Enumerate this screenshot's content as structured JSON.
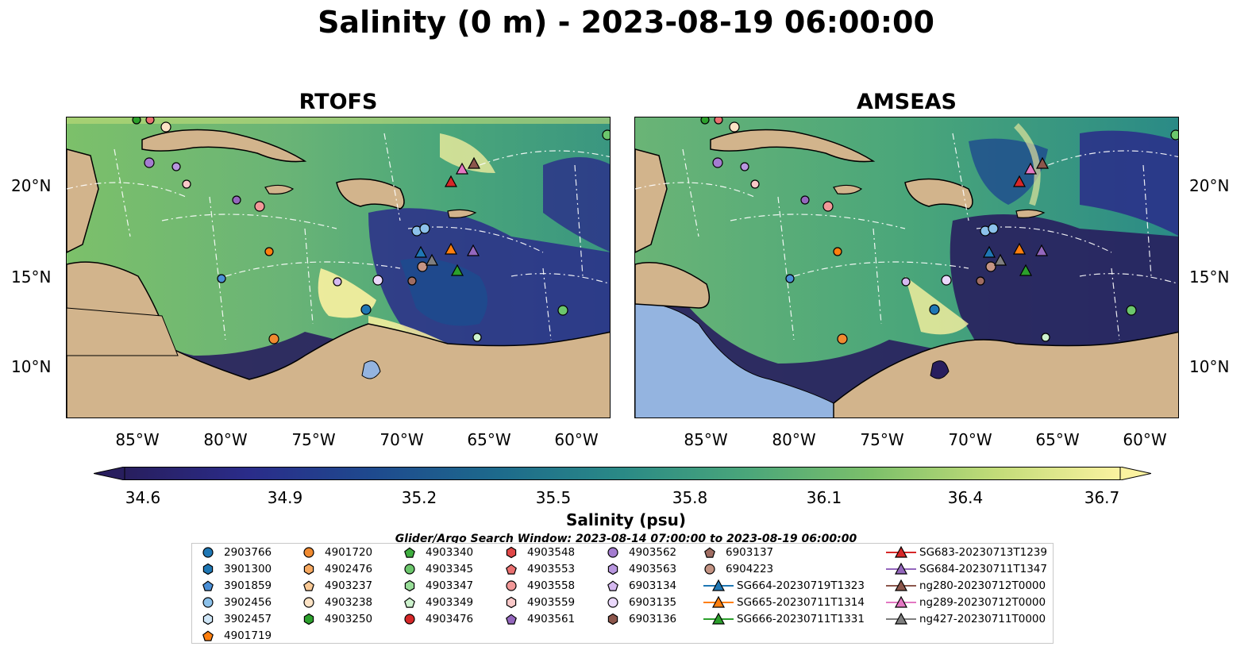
{
  "figure": {
    "title": "Salinity (0 m) - 2023-08-19 06:00:00",
    "panels": [
      {
        "title": "RTOFS"
      },
      {
        "title": "AMSEAS"
      }
    ],
    "lat_ticks": [
      "20°N",
      "15°N",
      "10°N"
    ],
    "lon_ticks": [
      "85°W",
      "80°W",
      "75°W",
      "70°W",
      "65°W",
      "60°W"
    ],
    "colorbar": {
      "label": "Salinity (psu)",
      "ticks": [
        "34.6",
        "34.9",
        "35.2",
        "35.5",
        "35.8",
        "36.1",
        "36.4",
        "36.7"
      ],
      "min": 34.6,
      "max": 36.7,
      "colormap": [
        "#281e5e",
        "#2a2c8a",
        "#1e4a8e",
        "#1d6a8c",
        "#2a8a86",
        "#4aa67a",
        "#7cc06a",
        "#c2dc78",
        "#fbf2a0"
      ]
    },
    "search_window": "Glider/Argo Search Window: 2023-08-14 07:00:00 to 2023-08-19 06:00:00",
    "land_color": "#d2b48c",
    "colors": {
      "tab_blue": "#1f77b4",
      "tab_orange": "#ff7f0e",
      "tab_green": "#2ca02c",
      "tab_red": "#d62728",
      "tab_purple": "#9467bd",
      "tab_brown": "#8c564b",
      "tab_pink": "#e377c2",
      "tab_gray": "#7f7f7f"
    }
  },
  "legend": {
    "columns": [
      [
        {
          "label": "2903766",
          "marker": "circle",
          "color": "#1f77b4"
        },
        {
          "label": "3901300",
          "marker": "hexagon",
          "color": "#1f77b4"
        },
        {
          "label": "3901859",
          "marker": "pentagon",
          "color": "#4a8fd6"
        },
        {
          "label": "3902456",
          "marker": "circle",
          "color": "#8cc1ea"
        },
        {
          "label": "3902457",
          "marker": "hexagon",
          "color": "#cfe6f7"
        },
        {
          "label": "4901719",
          "marker": "pentagon",
          "color": "#ff7f0e"
        }
      ],
      [
        {
          "label": "4901720",
          "marker": "circle",
          "color": "#f08a30"
        },
        {
          "label": "4902476",
          "marker": "hexagon",
          "color": "#f6a860"
        },
        {
          "label": "4903237",
          "marker": "pentagon",
          "color": "#f9c995"
        },
        {
          "label": "4903238",
          "marker": "circle",
          "color": "#fde3c5"
        },
        {
          "label": "4903250",
          "marker": "hexagon",
          "color": "#2ca02c"
        }
      ],
      [
        {
          "label": "4903340",
          "marker": "pentagon",
          "color": "#3fae3f"
        },
        {
          "label": "4903345",
          "marker": "circle",
          "color": "#6cc76c"
        },
        {
          "label": "4903347",
          "marker": "hexagon",
          "color": "#98dd98"
        },
        {
          "label": "4903349",
          "marker": "pentagon",
          "color": "#cdf2cd"
        },
        {
          "label": "4903476",
          "marker": "circle",
          "color": "#d62728"
        }
      ],
      [
        {
          "label": "4903548",
          "marker": "hexagon",
          "color": "#e04848"
        },
        {
          "label": "4903553",
          "marker": "pentagon",
          "color": "#ea7070"
        },
        {
          "label": "4903558",
          "marker": "circle",
          "color": "#f29898"
        },
        {
          "label": "4903559",
          "marker": "hexagon",
          "color": "#f9c8c8"
        },
        {
          "label": "4903561",
          "marker": "pentagon",
          "color": "#9467bd"
        }
      ],
      [
        {
          "label": "4903562",
          "marker": "circle",
          "color": "#a47cd0"
        },
        {
          "label": "4903563",
          "marker": "hexagon",
          "color": "#b896df"
        },
        {
          "label": "6903134",
          "marker": "pentagon",
          "color": "#d5b9f0"
        },
        {
          "label": "6903135",
          "marker": "circle",
          "color": "#ead8fb"
        },
        {
          "label": "6903136",
          "marker": "hexagon",
          "color": "#8c564b"
        }
      ],
      [
        {
          "label": "6903137",
          "marker": "pentagon",
          "color": "#a06d62"
        },
        {
          "label": "6904223",
          "marker": "circle",
          "color": "#c49484"
        },
        {
          "label": "SG664-20230719T1323",
          "marker": "triangle-line",
          "color": "#1f77b4"
        },
        {
          "label": "SG665-20230711T1314",
          "marker": "triangle-line",
          "color": "#ff7f0e"
        },
        {
          "label": "SG666-20230711T1331",
          "marker": "triangle-line",
          "color": "#2ca02c"
        }
      ],
      [
        {
          "label": "SG683-20230713T1239",
          "marker": "triangle-line",
          "color": "#d62728"
        },
        {
          "label": "SG684-20230711T1347",
          "marker": "triangle-line",
          "color": "#9467bd"
        },
        {
          "label": "ng280-20230712T0000",
          "marker": "triangle-line",
          "color": "#8c564b"
        },
        {
          "label": "ng289-20230712T0000",
          "marker": "triangle-line",
          "color": "#e377c2"
        },
        {
          "label": "ng427-20230711T0000",
          "marker": "triangle-line",
          "color": "#7f7f7f"
        }
      ]
    ]
  },
  "platforms": [
    {
      "id": "4903250",
      "lon": -84.9,
      "lat": 23.6
    },
    {
      "id": "4903553",
      "lon": -84.1,
      "lat": 23.6
    },
    {
      "id": "4903238",
      "lon": -82.8,
      "lat": 23.2
    },
    {
      "id": "4903562",
      "lon": -84.4,
      "lat": 21.3
    },
    {
      "id": "4903563",
      "lon": -81.8,
      "lat": 21.0
    },
    {
      "id": "4903559",
      "lon": -81.1,
      "lat": 20.0
    },
    {
      "id": "4903561",
      "lon": -79.3,
      "lat": 19.2
    },
    {
      "id": "4903558",
      "lon": -77.8,
      "lat": 18.8
    },
    {
      "id": "4901719",
      "lon": -77.2,
      "lat": 16.3
    },
    {
      "id": "3901859",
      "lon": -80.5,
      "lat": 14.8
    },
    {
      "id": "6903134",
      "lon": -73.5,
      "lat": 14.7
    },
    {
      "id": "6903135",
      "lon": -71.2,
      "lat": 14.7
    },
    {
      "id": "2903766",
      "lon": -72.1,
      "lat": 13.1
    },
    {
      "id": "4901720",
      "lon": -77.0,
      "lat": 11.5
    },
    {
      "id": "3902456",
      "lon": -68.9,
      "lat": 17.6
    },
    {
      "id": "3902456b",
      "lon": -68.5,
      "lat": 17.7
    },
    {
      "id": "6903137",
      "lon": -69.3,
      "lat": 14.7
    },
    {
      "id": "6904223",
      "lon": -68.7,
      "lat": 15.6
    },
    {
      "id": "4903349",
      "lon": -66.1,
      "lat": 11.6
    },
    {
      "id": "4903345",
      "lon": -60.6,
      "lat": 13.1
    },
    {
      "id": "4903345b",
      "lon": -58.1,
      "lat": 22.8
    },
    {
      "id": "SG683-20230713T1239",
      "lon": -67.1,
      "lat": 20.2
    },
    {
      "id": "ng289-20230712T0000",
      "lon": -66.6,
      "lat": 20.9
    },
    {
      "id": "ng280-20230712T0000",
      "lon": -65.9,
      "lat": 21.2
    },
    {
      "id": "SG664-20230719T1323",
      "lon": -68.8,
      "lat": 16.3
    },
    {
      "id": "ng427-20230711T0000",
      "lon": -68.2,
      "lat": 15.9
    },
    {
      "id": "SG665-20230711T1314",
      "lon": -67.1,
      "lat": 16.5
    },
    {
      "id": "SG684-20230711T1347",
      "lon": -65.9,
      "lat": 16.4
    },
    {
      "id": "SG666-20230711T1331",
      "lon": -66.6,
      "lat": 15.4
    }
  ]
}
